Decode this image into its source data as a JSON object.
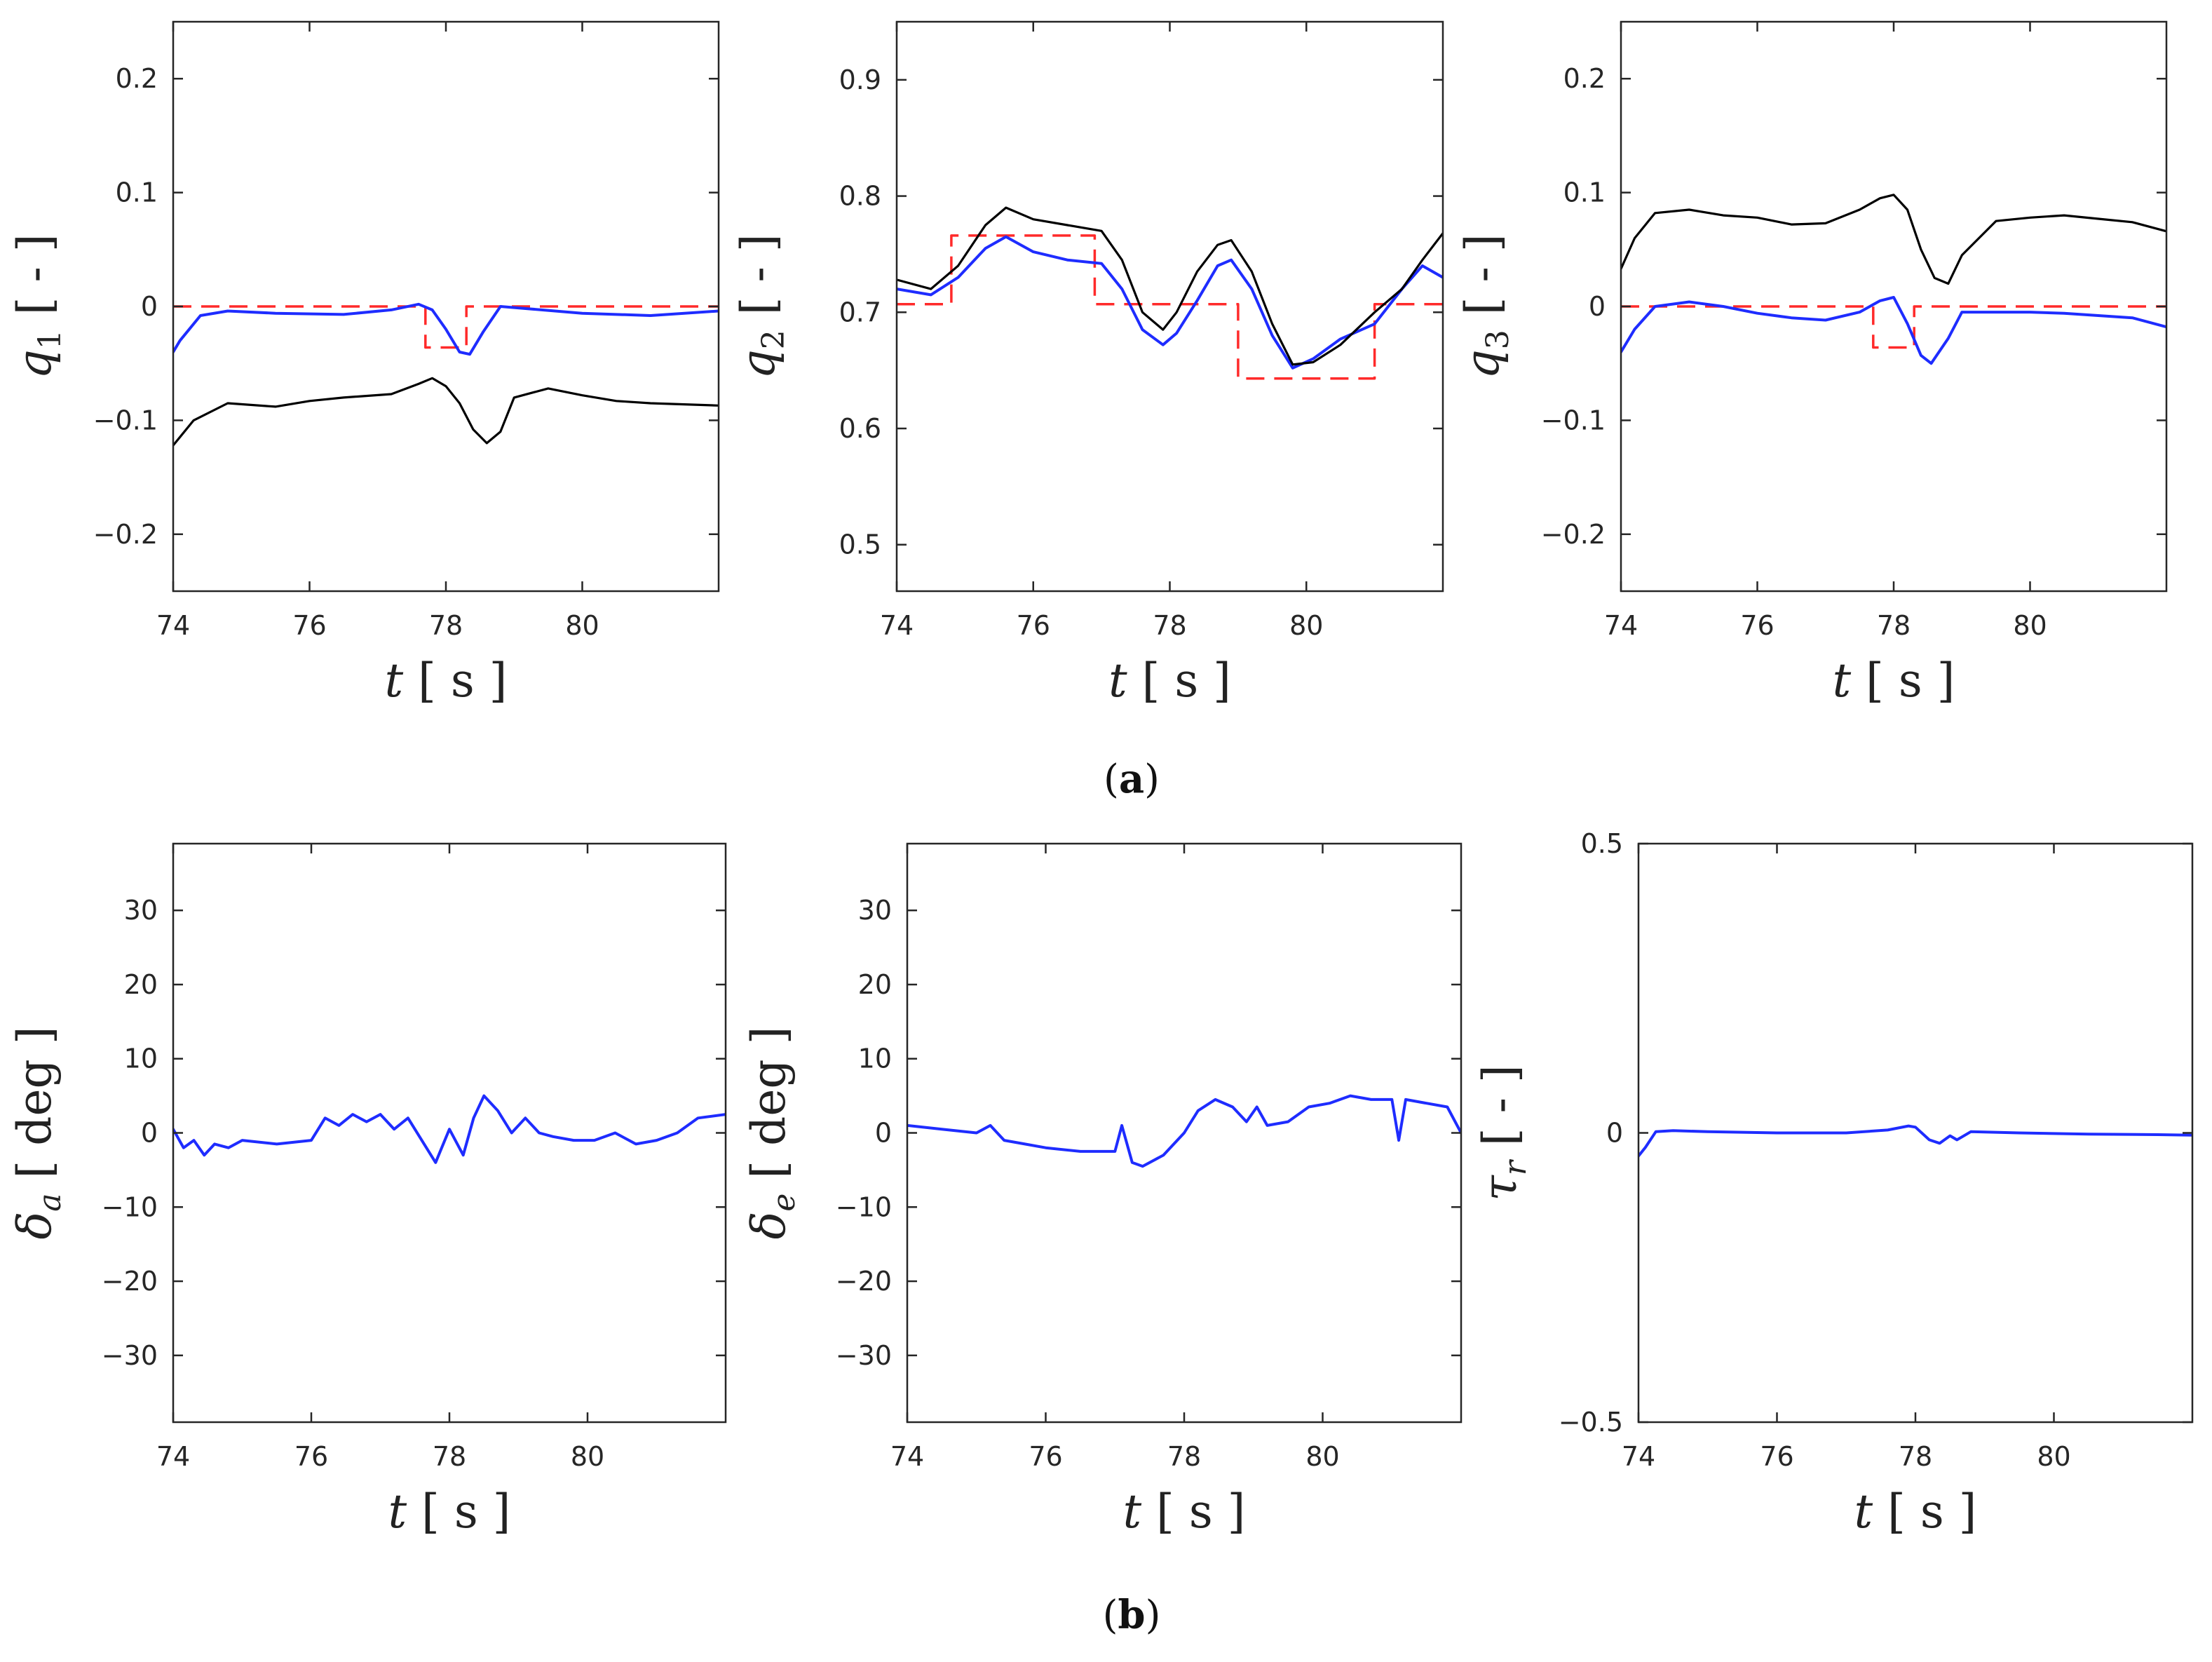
{
  "figure": {
    "caption_a": "a",
    "caption_b": "b"
  },
  "colors": {
    "actual": "#000000",
    "reference": "#ff2a2a",
    "estimate": "#1e2cff",
    "axis": "#262626"
  },
  "chart_data": [
    {
      "id": "q1",
      "type": "line",
      "ylabel": {
        "sym": "q",
        "sub": "1",
        "unit": "[ - ]"
      },
      "xlabel": {
        "sym": "t",
        "unit": "[ s ]"
      },
      "xlim": [
        74,
        82
      ],
      "ylim": [
        -0.25,
        0.25
      ],
      "xticks": [
        74,
        76,
        78,
        80
      ],
      "yticks": [
        -0.2,
        -0.1,
        0,
        0.1,
        0.2
      ],
      "yticklabels": [
        "−0.2",
        "−0.1",
        "0",
        "0.1",
        "0.2"
      ],
      "series": [
        {
          "name": "reference",
          "style": "dashed",
          "color": "#ff2a2a",
          "step": true,
          "x": [
            74,
            77.7,
            77.7,
            78.3,
            78.3,
            82
          ],
          "y": [
            0,
            0,
            -0.036,
            -0.036,
            0,
            0
          ]
        },
        {
          "name": "estimate",
          "style": "solid",
          "color": "#1e2cff",
          "x": [
            74,
            74.1,
            74.4,
            74.8,
            75.5,
            76.5,
            77.2,
            77.6,
            77.8,
            78.0,
            78.2,
            78.35,
            78.55,
            78.8,
            79.2,
            80,
            81,
            82
          ],
          "y": [
            -0.04,
            -0.03,
            -0.008,
            -0.004,
            -0.006,
            -0.007,
            -0.003,
            0.002,
            -0.003,
            -0.02,
            -0.04,
            -0.042,
            -0.022,
            0,
            -0.002,
            -0.006,
            -0.008,
            -0.004
          ]
        },
        {
          "name": "actual",
          "style": "solid",
          "color": "#000000",
          "x": [
            74,
            74.3,
            74.8,
            75.5,
            76,
            76.5,
            77.2,
            77.6,
            77.8,
            78.0,
            78.2,
            78.4,
            78.6,
            78.8,
            79.0,
            79.5,
            80,
            80.5,
            81,
            82
          ],
          "y": [
            -0.122,
            -0.1,
            -0.085,
            -0.088,
            -0.083,
            -0.08,
            -0.077,
            -0.068,
            -0.063,
            -0.07,
            -0.085,
            -0.108,
            -0.12,
            -0.11,
            -0.08,
            -0.072,
            -0.078,
            -0.083,
            -0.085,
            -0.087
          ]
        }
      ]
    },
    {
      "id": "q2",
      "type": "line",
      "ylabel": {
        "sym": "q",
        "sub": "2",
        "unit": "[ - ]"
      },
      "xlabel": {
        "sym": "t",
        "unit": "[ s ]"
      },
      "xlim": [
        74,
        82
      ],
      "ylim": [
        0.46,
        0.95
      ],
      "xticks": [
        74,
        76,
        78,
        80
      ],
      "yticks": [
        0.5,
        0.6,
        0.7,
        0.8,
        0.9
      ],
      "yticklabels": [
        "0.5",
        "0.6",
        "0.7",
        "0.8",
        "0.9"
      ],
      "series": [
        {
          "name": "reference",
          "style": "dashed",
          "color": "#ff2a2a",
          "step": true,
          "x": [
            74,
            74.8,
            74.8,
            76.9,
            76.9,
            79.0,
            79.0,
            81.0,
            81.0,
            82
          ],
          "y": [
            0.707,
            0.707,
            0.766,
            0.766,
            0.707,
            0.707,
            0.643,
            0.643,
            0.707,
            0.707
          ]
        },
        {
          "name": "estimate",
          "style": "solid",
          "color": "#1e2cff",
          "x": [
            74,
            74.5,
            74.9,
            75.3,
            75.6,
            76.0,
            76.5,
            77.0,
            77.3,
            77.6,
            77.9,
            78.1,
            78.4,
            78.7,
            78.9,
            79.2,
            79.5,
            79.8,
            80.1,
            80.5,
            81.0,
            81.4,
            81.7,
            82
          ],
          "y": [
            0.72,
            0.715,
            0.73,
            0.755,
            0.765,
            0.752,
            0.745,
            0.742,
            0.72,
            0.685,
            0.672,
            0.682,
            0.71,
            0.74,
            0.745,
            0.72,
            0.68,
            0.652,
            0.66,
            0.677,
            0.69,
            0.72,
            0.74,
            0.73
          ]
        },
        {
          "name": "actual",
          "style": "solid",
          "color": "#000000",
          "x": [
            74,
            74.5,
            74.9,
            75.3,
            75.6,
            76.0,
            76.5,
            77.0,
            77.3,
            77.6,
            77.9,
            78.1,
            78.4,
            78.7,
            78.9,
            79.2,
            79.5,
            79.8,
            80.1,
            80.5,
            81.0,
            81.4,
            81.7,
            82
          ],
          "y": [
            0.728,
            0.72,
            0.74,
            0.775,
            0.79,
            0.78,
            0.775,
            0.77,
            0.745,
            0.7,
            0.685,
            0.7,
            0.735,
            0.758,
            0.762,
            0.735,
            0.69,
            0.655,
            0.657,
            0.672,
            0.7,
            0.72,
            0.745,
            0.768
          ]
        }
      ]
    },
    {
      "id": "q3",
      "type": "line",
      "ylabel": {
        "sym": "q",
        "sub": "3",
        "unit": "[ - ]"
      },
      "xlabel": {
        "sym": "t",
        "unit": "[ s ]"
      },
      "xlim": [
        74,
        82
      ],
      "ylim": [
        -0.25,
        0.25
      ],
      "xticks": [
        74,
        76,
        78,
        80
      ],
      "yticks": [
        -0.2,
        -0.1,
        0,
        0.1,
        0.2
      ],
      "yticklabels": [
        "−0.2",
        "−0.1",
        "0",
        "0.1",
        "0.2"
      ],
      "series": [
        {
          "name": "reference",
          "style": "dashed",
          "color": "#ff2a2a",
          "step": true,
          "x": [
            74,
            77.7,
            77.7,
            78.3,
            78.3,
            82
          ],
          "y": [
            0,
            0,
            -0.036,
            -0.036,
            0,
            0
          ]
        },
        {
          "name": "estimate",
          "style": "solid",
          "color": "#1e2cff",
          "x": [
            74,
            74.2,
            74.5,
            75.0,
            75.5,
            76.0,
            76.5,
            77.0,
            77.5,
            77.8,
            78.0,
            78.2,
            78.4,
            78.55,
            78.8,
            79.0,
            79.5,
            80.0,
            80.5,
            81.0,
            81.5,
            82
          ],
          "y": [
            -0.04,
            -0.02,
            0.0,
            0.004,
            0.0,
            -0.006,
            -0.01,
            -0.012,
            -0.005,
            0.005,
            0.008,
            -0.015,
            -0.043,
            -0.05,
            -0.028,
            -0.005,
            -0.005,
            -0.005,
            -0.006,
            -0.008,
            -0.01,
            -0.018
          ]
        },
        {
          "name": "actual",
          "style": "solid",
          "color": "#000000",
          "x": [
            74,
            74.2,
            74.5,
            75.0,
            75.5,
            76.0,
            76.5,
            77.0,
            77.5,
            77.8,
            78.0,
            78.2,
            78.4,
            78.6,
            78.8,
            79.0,
            79.5,
            80.0,
            80.5,
            81.0,
            81.5,
            82
          ],
          "y": [
            0.033,
            0.06,
            0.082,
            0.085,
            0.08,
            0.078,
            0.072,
            0.073,
            0.085,
            0.095,
            0.098,
            0.085,
            0.05,
            0.025,
            0.02,
            0.045,
            0.075,
            0.078,
            0.08,
            0.077,
            0.074,
            0.066
          ]
        }
      ]
    },
    {
      "id": "delta_a",
      "type": "line",
      "ylabel": {
        "sym": "δ",
        "sub": "a",
        "unit": "[ deg ]"
      },
      "xlabel": {
        "sym": "t",
        "unit": "[ s ]"
      },
      "xlim": [
        74,
        82
      ],
      "ylim": [
        -39,
        39
      ],
      "xticks": [
        74,
        76,
        78,
        80
      ],
      "yticks": [
        -30,
        -20,
        -10,
        0,
        10,
        20,
        30
      ],
      "yticklabels": [
        "−30",
        "−20",
        "−10",
        "0",
        "10",
        "20",
        "30"
      ],
      "series": [
        {
          "name": "estimate",
          "style": "solid",
          "color": "#1e2cff",
          "x": [
            74,
            74.15,
            74.3,
            74.45,
            74.6,
            74.8,
            75.0,
            75.5,
            76.0,
            76.2,
            76.4,
            76.6,
            76.8,
            77.0,
            77.2,
            77.4,
            77.6,
            77.8,
            78.0,
            78.2,
            78.35,
            78.5,
            78.7,
            78.9,
            79.1,
            79.3,
            79.5,
            79.8,
            80.1,
            80.4,
            80.7,
            81.0,
            81.3,
            81.6,
            82
          ],
          "y": [
            0.5,
            -2,
            -1,
            -3,
            -1.5,
            -2,
            -1,
            -1.5,
            -1,
            2,
            1,
            2.5,
            1.5,
            2.5,
            0.5,
            2,
            -1,
            -4,
            0.5,
            -3,
            2,
            5,
            3,
            0,
            2,
            0,
            -0.5,
            -1,
            -1,
            0,
            -1.5,
            -1,
            0,
            2,
            2.5
          ]
        }
      ]
    },
    {
      "id": "delta_e",
      "type": "line",
      "ylabel": {
        "sym": "δ",
        "sub": "e",
        "unit": "[ deg ]"
      },
      "xlabel": {
        "sym": "t",
        "unit": "[ s ]"
      },
      "xlim": [
        74,
        82
      ],
      "ylim": [
        -39,
        39
      ],
      "xticks": [
        74,
        76,
        78,
        80
      ],
      "yticks": [
        -30,
        -20,
        -10,
        0,
        10,
        20,
        30
      ],
      "yticklabels": [
        "−30",
        "−20",
        "−10",
        "0",
        "10",
        "20",
        "30"
      ],
      "series": [
        {
          "name": "estimate",
          "style": "solid",
          "color": "#1e2cff",
          "x": [
            74,
            74.5,
            75.0,
            75.2,
            75.4,
            75.7,
            76.0,
            76.5,
            77.0,
            77.1,
            77.25,
            77.4,
            77.7,
            78.0,
            78.2,
            78.45,
            78.7,
            78.9,
            79.05,
            79.2,
            79.5,
            79.8,
            80.1,
            80.4,
            80.7,
            81.0,
            81.1,
            81.2,
            81.5,
            81.8,
            82
          ],
          "y": [
            1,
            0.5,
            0,
            1,
            -1,
            -1.5,
            -2,
            -2.5,
            -2.5,
            1,
            -4,
            -4.5,
            -3,
            0,
            3,
            4.5,
            3.5,
            1.5,
            3.5,
            1,
            1.5,
            3.5,
            4,
            5,
            4.5,
            4.5,
            -1,
            4.5,
            4,
            3.5,
            0
          ]
        }
      ]
    },
    {
      "id": "tau_r",
      "type": "line",
      "ylabel": {
        "sym": "τ",
        "sub": "r",
        "unit": "[ - ]"
      },
      "xlabel": {
        "sym": "t",
        "unit": "[ s ]"
      },
      "xlim": [
        74,
        82
      ],
      "ylim": [
        -0.5,
        0.5
      ],
      "xticks": [
        74,
        76,
        78,
        80
      ],
      "yticks": [
        -0.5,
        0,
        0.5
      ],
      "yticklabels": [
        "−0.5",
        "0",
        "0.5"
      ],
      "series": [
        {
          "name": "estimate",
          "style": "solid",
          "color": "#1e2cff",
          "x": [
            74,
            74.1,
            74.25,
            74.5,
            75,
            76,
            77,
            77.6,
            77.9,
            78.0,
            78.2,
            78.35,
            78.5,
            78.6,
            78.8,
            79.5,
            80.5,
            81.5,
            82
          ],
          "y": [
            -0.04,
            -0.025,
            0.002,
            0.004,
            0.002,
            0.0,
            0.0,
            0.005,
            0.012,
            0.01,
            -0.012,
            -0.018,
            -0.005,
            -0.012,
            0.002,
            0.0,
            -0.002,
            -0.003,
            -0.004
          ]
        }
      ]
    }
  ]
}
